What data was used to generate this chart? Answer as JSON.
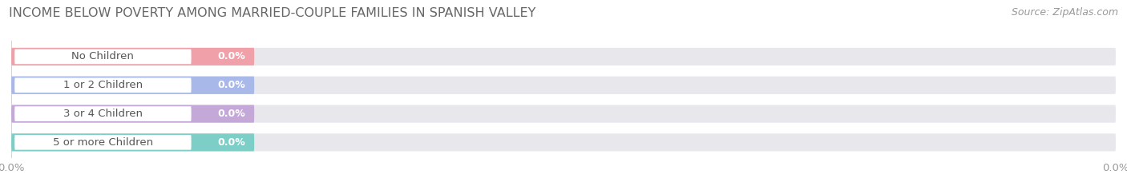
{
  "title": "INCOME BELOW POVERTY AMONG MARRIED-COUPLE FAMILIES IN SPANISH VALLEY",
  "source": "Source: ZipAtlas.com",
  "categories": [
    "No Children",
    "1 or 2 Children",
    "3 or 4 Children",
    "5 or more Children"
  ],
  "values": [
    0.0,
    0.0,
    0.0,
    0.0
  ],
  "bar_colors": [
    "#f0a0a8",
    "#a8b8e8",
    "#c4a8d8",
    "#7ecec8"
  ],
  "bar_bg_color": "#e8e8ec",
  "title_fontsize": 11.5,
  "label_fontsize": 9.5,
  "value_fontsize": 9,
  "source_fontsize": 9,
  "background_color": "#ffffff",
  "tick_label_color": "#999999",
  "source_color": "#999999",
  "title_color": "#666666",
  "label_text_color": "#555555",
  "value_text_color": "#ffffff"
}
